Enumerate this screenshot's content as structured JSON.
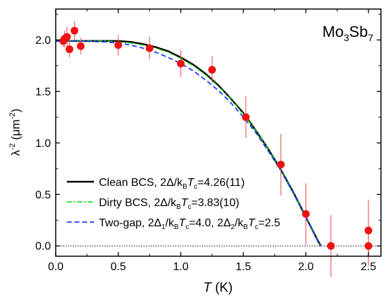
{
  "chart_data": {
    "type": "scatter",
    "title": "",
    "xlabel_italic": "T",
    "xlabel_rest": " (K)",
    "ylabel_main": "λ",
    "ylabel_sup": "-2",
    "ylabel_rest": " (μm",
    "ylabel_sup2": "-2",
    "ylabel_end": ")",
    "annotation": {
      "main1": "Mo",
      "sub1": "3",
      "main2": "Sb",
      "sub2": "7"
    },
    "xlim": [
      0.0,
      2.6
    ],
    "ylim": [
      -0.1,
      2.3
    ],
    "xticks": [
      0.0,
      0.5,
      1.0,
      1.5,
      2.0,
      2.5
    ],
    "xtick_labels": [
      "0.0",
      "0.5",
      "1.0",
      "1.5",
      "2.0",
      "2.5"
    ],
    "yticks": [
      0.0,
      0.5,
      1.0,
      1.5,
      2.0
    ],
    "ytick_labels": [
      "0.0",
      "0.5",
      "1.0",
      "1.5",
      "2.0"
    ],
    "grid": false,
    "legend_position": "bottom-left",
    "zero_line": true,
    "points": {
      "color": "#ee1111",
      "errorbar_color": "#f06060",
      "x": [
        0.06,
        0.07,
        0.09,
        0.11,
        0.15,
        0.2,
        0.5,
        0.75,
        1.0,
        1.25,
        1.52,
        1.8,
        2.0,
        2.2,
        2.5,
        2.5
      ],
      "y": [
        1.99,
        2.01,
        2.03,
        1.91,
        2.09,
        1.94,
        1.95,
        1.92,
        1.77,
        1.71,
        1.25,
        0.79,
        0.31,
        0.0,
        0.15,
        0.0
      ],
      "err": [
        0.06,
        0.08,
        0.1,
        0.08,
        0.09,
        0.08,
        0.1,
        0.11,
        0.13,
        0.13,
        0.2,
        0.3,
        0.3,
        0.3,
        0.3,
        0.2
      ]
    },
    "series": [
      {
        "legend": {
          "pre": "Clean BCS, 2Δ/k",
          "sub1": "B",
          "ital": "T",
          "sub2": "c",
          "post": "=4.26(11)"
        },
        "color": "#000000",
        "style": "solid",
        "x": [
          0.0,
          0.2,
          0.4,
          0.5,
          0.6,
          0.7,
          0.8,
          0.9,
          1.0,
          1.1,
          1.2,
          1.3,
          1.4,
          1.5,
          1.6,
          1.7,
          1.8,
          1.9,
          2.0,
          2.05,
          2.1,
          2.12
        ],
        "y": [
          1.99,
          1.99,
          1.99,
          1.99,
          1.98,
          1.96,
          1.93,
          1.89,
          1.83,
          1.76,
          1.67,
          1.56,
          1.43,
          1.29,
          1.12,
          0.94,
          0.74,
          0.52,
          0.28,
          0.16,
          0.04,
          0.0
        ]
      },
      {
        "legend": {
          "pre": "Dirty BCS,  2Δ/k",
          "sub1": "B",
          "ital": "T",
          "sub2": "c",
          "post": "=3.83(10)"
        },
        "color": "#00cc00",
        "style": "dashdot",
        "x": [
          0.0,
          0.2,
          0.4,
          0.5,
          0.6,
          0.7,
          0.8,
          0.9,
          1.0,
          1.1,
          1.2,
          1.3,
          1.4,
          1.5,
          1.6,
          1.7,
          1.8,
          1.9,
          2.0,
          2.05,
          2.1,
          2.12
        ],
        "y": [
          1.99,
          1.99,
          1.99,
          1.98,
          1.97,
          1.95,
          1.92,
          1.88,
          1.82,
          1.75,
          1.66,
          1.55,
          1.43,
          1.28,
          1.12,
          0.94,
          0.74,
          0.52,
          0.28,
          0.16,
          0.04,
          0.0
        ]
      },
      {
        "legend": {
          "pre": "Two-gap, 2Δ",
          "sub1": "1",
          "mid": "/k",
          "sub2": "B",
          "ital": "T",
          "sub3": "c",
          "post1": "=4.0, 2Δ",
          "sub4": "2",
          "mid2": "/k",
          "sub5": "B",
          "ital2": "T",
          "sub6": "c",
          "post2": "=2.5"
        },
        "color": "#1a3cff",
        "style": "dashed",
        "x": [
          0.0,
          0.2,
          0.4,
          0.5,
          0.6,
          0.7,
          0.8,
          0.9,
          1.0,
          1.1,
          1.2,
          1.3,
          1.4,
          1.5,
          1.6,
          1.7,
          1.8,
          1.9,
          2.0,
          2.05,
          2.1,
          2.12
        ],
        "y": [
          1.99,
          1.99,
          1.98,
          1.97,
          1.95,
          1.92,
          1.88,
          1.83,
          1.77,
          1.7,
          1.61,
          1.51,
          1.39,
          1.25,
          1.1,
          0.92,
          0.73,
          0.51,
          0.28,
          0.16,
          0.04,
          0.0
        ]
      }
    ]
  }
}
